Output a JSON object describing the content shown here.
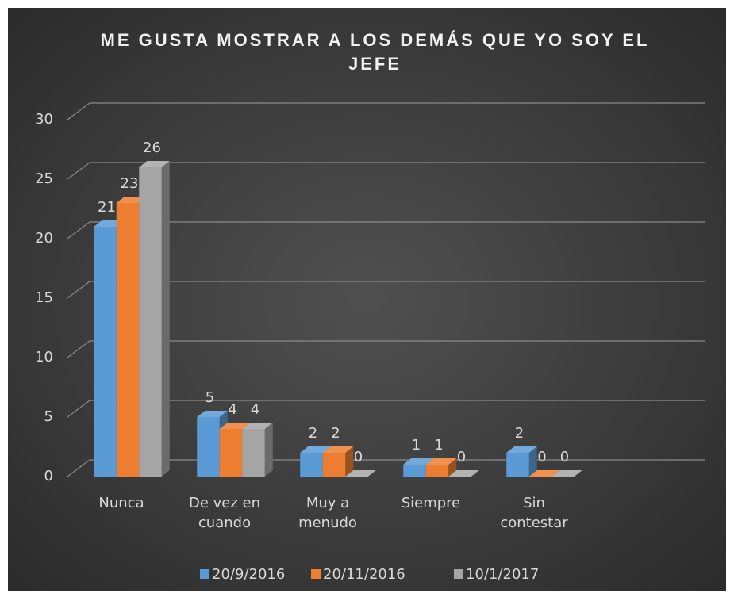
{
  "chart_data": {
    "type": "bar3d",
    "title": "ME GUSTA MOSTRAR A LOS DEMÁS QUE YO SOY EL JEFE",
    "categories": [
      "Nunca",
      "De vez en cuando",
      "Muy a menudo",
      "Siempre",
      "Sin contestar"
    ],
    "series": [
      {
        "name": "20/9/2016",
        "color": "#5b9bd5",
        "values": [
          21,
          5,
          2,
          1,
          2
        ]
      },
      {
        "name": "20/11/2016",
        "color": "#ed7d31",
        "values": [
          23,
          4,
          2,
          1,
          0
        ]
      },
      {
        "name": "10/1/2017",
        "color": "#a5a5a5",
        "values": [
          26,
          4,
          0,
          0,
          0
        ]
      }
    ],
    "ylim": [
      0,
      30
    ],
    "yticks": [
      0,
      5,
      10,
      15,
      20,
      25,
      30
    ],
    "grid": true,
    "legend": "bottom",
    "data_labels": true
  }
}
